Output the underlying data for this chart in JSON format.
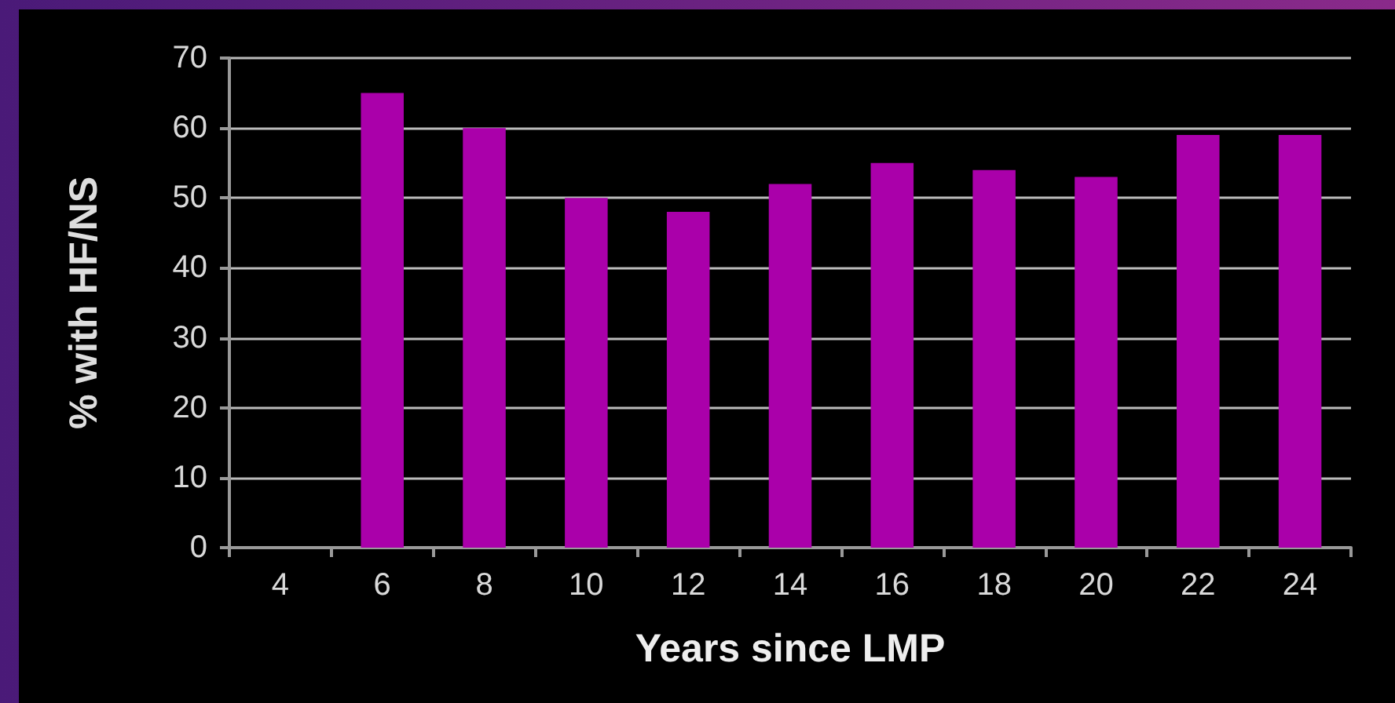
{
  "chart_data": {
    "type": "bar",
    "xlabel": "Years since LMP",
    "ylabel": "% with HF/NS",
    "categories": [
      "4",
      "6",
      "8",
      "10",
      "12",
      "14",
      "16",
      "18",
      "20",
      "22",
      "24"
    ],
    "values": [
      null,
      65,
      60,
      50,
      48,
      52,
      55,
      54,
      53,
      59,
      59
    ],
    "color": "#aa00aa",
    "ylim": [
      0,
      70
    ],
    "yticks": [
      0,
      10,
      20,
      30,
      40,
      50,
      60,
      70
    ],
    "grid": "y"
  }
}
